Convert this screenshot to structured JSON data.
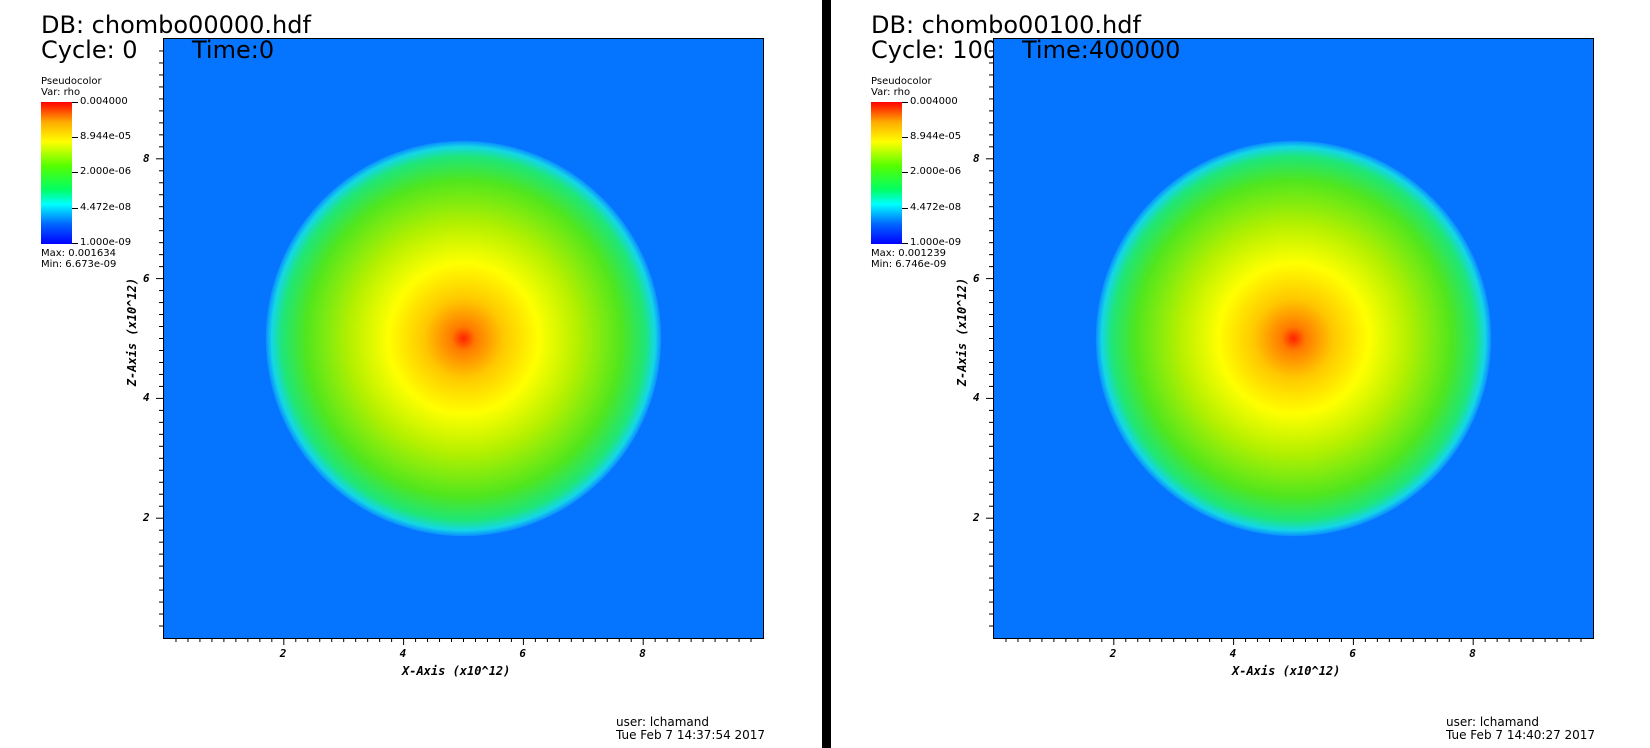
{
  "panels": [
    {
      "db_label": "DB: chombo00000.hdf",
      "cycle_label": "Cycle: 0",
      "time_label": "Time:0",
      "legend": {
        "title": "Pseudocolor",
        "var": "Var: rho",
        "ticks": [
          "0.004000",
          "8.944e-05",
          "2.000e-06",
          "4.472e-08",
          "1.000e-09"
        ],
        "max": "Max:  0.001634",
        "min": "Min:  6.673e-09"
      },
      "x_axis_label": "X-Axis (x10^12)",
      "y_axis_label": "Z-Axis (x10^12)",
      "user": "user: lchamand",
      "timestamp": "Tue Feb  7 14:37:54 2017"
    },
    {
      "db_label": "DB: chombo00100.hdf",
      "cycle_label": "Cycle: 100",
      "time_label": "Time:400000",
      "legend": {
        "title": "Pseudocolor",
        "var": "Var: rho",
        "ticks": [
          "0.004000",
          "8.944e-05",
          "2.000e-06",
          "4.472e-08",
          "1.000e-09"
        ],
        "max": "Max:  0.001239",
        "min": "Min:  6.746e-09"
      },
      "x_axis_label": "X-Axis (x10^12)",
      "y_axis_label": "Z-Axis (x10^12)",
      "user": "user: lchamand",
      "timestamp": "Tue Feb  7 14:40:27 2017"
    }
  ],
  "chart_data": [
    {
      "type": "heatmap",
      "variable": "rho",
      "xlabel": "X-Axis (x10^12)",
      "ylabel": "Z-Axis (x10^12)",
      "xlim": [
        0,
        10
      ],
      "ylim": [
        0,
        10
      ],
      "xticks": [
        2,
        4,
        6,
        8
      ],
      "yticks": [
        2,
        4,
        6,
        8
      ],
      "color_scale": "log",
      "color_range": [
        1e-09,
        0.004
      ],
      "colormap": [
        "#0000ff",
        "#0066ff",
        "#00ffff",
        "#00ff66",
        "#55ff00",
        "#ffff00",
        "#ffaa00",
        "#ff0000"
      ],
      "background_color": "#0575ff",
      "feature": {
        "shape": "disk",
        "center": [
          5,
          5
        ],
        "radius": 3.3
      },
      "max": 0.001634,
      "min": 6.673e-09
    },
    {
      "type": "heatmap",
      "variable": "rho",
      "xlabel": "X-Axis (x10^12)",
      "ylabel": "Z-Axis (x10^12)",
      "xlim": [
        0,
        10
      ],
      "ylim": [
        0,
        10
      ],
      "xticks": [
        2,
        4,
        6,
        8
      ],
      "yticks": [
        2,
        4,
        6,
        8
      ],
      "color_scale": "log",
      "color_range": [
        1e-09,
        0.004
      ],
      "colormap": [
        "#0000ff",
        "#0066ff",
        "#00ffff",
        "#00ff66",
        "#55ff00",
        "#ffff00",
        "#ffaa00",
        "#ff0000"
      ],
      "background_color": "#0575ff",
      "feature": {
        "shape": "disk",
        "center": [
          5,
          5
        ],
        "radius": 3.3
      },
      "max": 0.001239,
      "min": 6.746e-09
    }
  ]
}
